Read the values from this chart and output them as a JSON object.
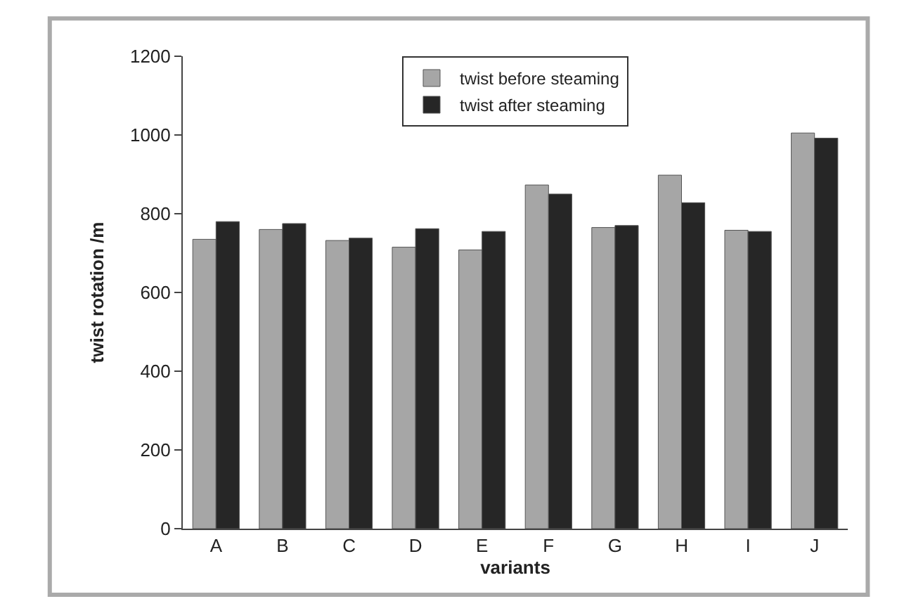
{
  "chart_data": {
    "type": "bar",
    "xlabel": "variants",
    "ylabel": "twist rotation /m",
    "categories": [
      "A",
      "B",
      "C",
      "D",
      "E",
      "F",
      "G",
      "H",
      "I",
      "J"
    ],
    "series": [
      {
        "name": "twist before steaming",
        "color": "#a6a6a6",
        "values": [
          735,
          760,
          732,
          715,
          708,
          873,
          765,
          898,
          758,
          1005
        ]
      },
      {
        "name": "twist after steaming",
        "color": "#262626",
        "values": [
          780,
          775,
          738,
          762,
          755,
          850,
          770,
          828,
          755,
          992
        ]
      }
    ],
    "ylim": [
      0,
      1200
    ],
    "yticks": [
      0,
      200,
      400,
      600,
      800,
      1000,
      1200
    ],
    "legend": "top"
  }
}
